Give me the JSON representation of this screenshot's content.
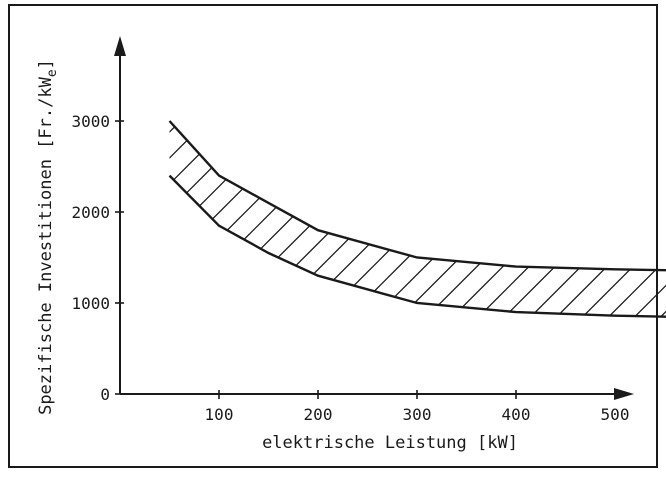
{
  "chart_data": {
    "type": "area",
    "title": "",
    "xlabel": "elektrische Leistung [kW]",
    "ylabel": "Spezifische Investitionen [Fr./kW",
    "ylabel_subscript": "e",
    "ylabel_end": "]",
    "xlim": [
      0,
      640
    ],
    "ylim": [
      0,
      3900
    ],
    "x_ticks": [
      100,
      200,
      300,
      400,
      500,
      600
    ],
    "y_ticks": [
      0,
      1000,
      2000,
      3000
    ],
    "grid": false,
    "hatch": "diagonal",
    "series": [
      {
        "x": [
          50,
          100,
          150,
          200,
          300,
          400,
          500,
          600
        ],
        "values": [
          3000,
          2400,
          2100,
          1800,
          1500,
          1400,
          1370,
          1350
        ]
      },
      {
        "x": [
          50,
          100,
          150,
          200,
          300,
          400,
          500,
          600
        ],
        "values": [
          2400,
          1850,
          1550,
          1300,
          1000,
          900,
          860,
          840
        ]
      }
    ]
  }
}
